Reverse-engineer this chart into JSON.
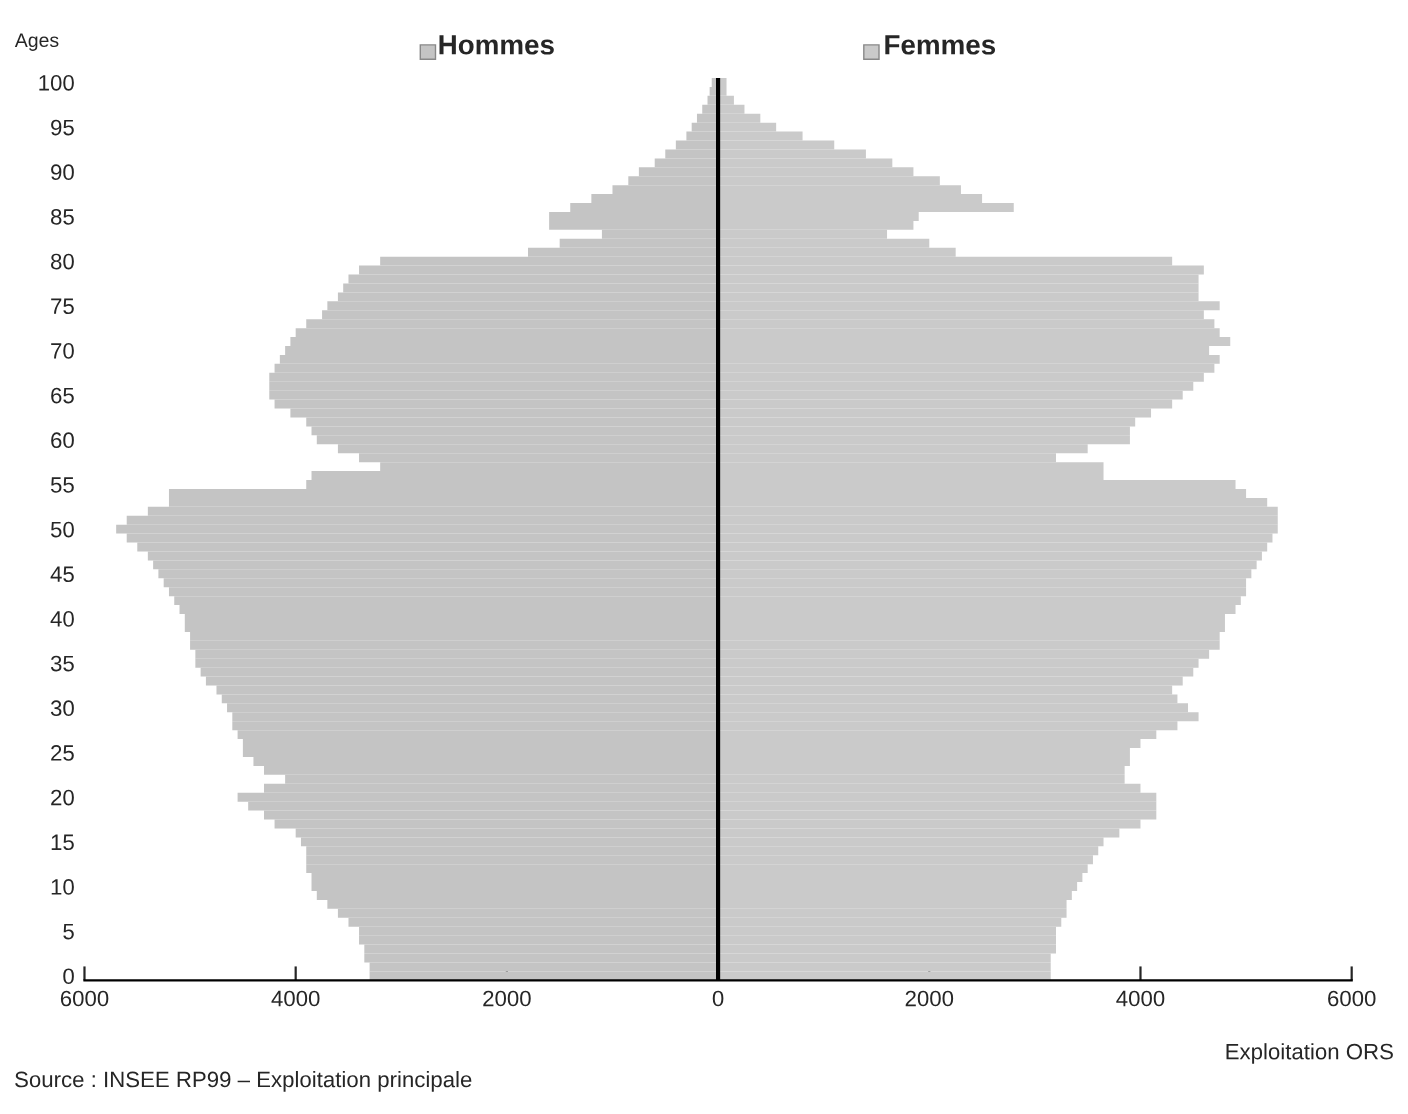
{
  "chart_data": {
    "type": "bar",
    "orientation": "horizontal",
    "ylabel": "Ages",
    "categories": [
      "100",
      null,
      null,
      null,
      null,
      "95",
      null,
      null,
      null,
      null,
      "90",
      null,
      null,
      null,
      null,
      "85",
      null,
      null,
      null,
      null,
      "80",
      null,
      null,
      null,
      null,
      "75",
      null,
      null,
      null,
      null,
      "70",
      null,
      null,
      null,
      null,
      "65",
      null,
      null,
      null,
      null,
      "60",
      null,
      null,
      null,
      null,
      "55",
      null,
      null,
      null,
      null,
      "50",
      null,
      null,
      null,
      null,
      "45",
      null,
      null,
      null,
      null,
      "40",
      null,
      null,
      null,
      null,
      "35",
      null,
      null,
      null,
      null,
      "30",
      null,
      null,
      null,
      null,
      "25",
      null,
      null,
      null,
      null,
      "20",
      null,
      null,
      null,
      null,
      "15",
      null,
      null,
      null,
      null,
      "10",
      null,
      null,
      null,
      null,
      "5",
      null,
      null,
      null,
      null,
      "0"
    ],
    "series": [
      {
        "name": "Hommes",
        "color": "#c4c4c4",
        "values": [
          -60,
          -80,
          -100,
          -150,
          -200,
          -250,
          -300,
          -400,
          -500,
          -600,
          -750,
          -850,
          -1000,
          -1200,
          -1400,
          -1600,
          -1600,
          -1100,
          -1500,
          -1800,
          -3200,
          -3400,
          -3500,
          -3550,
          -3600,
          -3700,
          -3750,
          -3900,
          -4000,
          -4050,
          -4100,
          -4150,
          -4200,
          -4250,
          -4250,
          -4250,
          -4200,
          -4050,
          -3900,
          -3850,
          -3800,
          -3600,
          -3400,
          -3200,
          -3850,
          -3900,
          -5200,
          -5200,
          -5400,
          -5600,
          -5700,
          -5600,
          -5500,
          -5400,
          -5350,
          -5300,
          -5250,
          -5200,
          -5150,
          -5100,
          -5050,
          -5050,
          -5000,
          -5000,
          -4950,
          -4950,
          -4900,
          -4850,
          -4750,
          -4700,
          -4650,
          -4600,
          -4600,
          -4550,
          -4500,
          -4500,
          -4400,
          -4300,
          -4100,
          -4300,
          -4550,
          -4450,
          -4300,
          -4200,
          -4000,
          -3950,
          -3900,
          -3900,
          -3900,
          -3850,
          -3850,
          -3800,
          -3700,
          -3600,
          -3500,
          -3400,
          -3400,
          -3350,
          -3350,
          -3300,
          -3300
        ]
      },
      {
        "name": "Femmes",
        "color": "#cacaca",
        "values": [
          80,
          80,
          150,
          250,
          400,
          550,
          800,
          1100,
          1400,
          1650,
          1850,
          2100,
          2300,
          2500,
          2800,
          1900,
          1850,
          1600,
          2000,
          2250,
          4300,
          4600,
          4550,
          4550,
          4550,
          4750,
          4600,
          4700,
          4750,
          4850,
          4650,
          4750,
          4700,
          4600,
          4500,
          4400,
          4300,
          4100,
          3950,
          3900,
          3900,
          3500,
          3200,
          3650,
          3650,
          4900,
          5000,
          5200,
          5300,
          5300,
          5300,
          5250,
          5200,
          5150,
          5100,
          5050,
          5000,
          5000,
          4950,
          4900,
          4800,
          4800,
          4750,
          4750,
          4650,
          4550,
          4500,
          4400,
          4300,
          4350,
          4450,
          4550,
          4350,
          4150,
          4000,
          3900,
          3900,
          3850,
          3850,
          4000,
          4150,
          4150,
          4150,
          4000,
          3800,
          3650,
          3600,
          3550,
          3500,
          3450,
          3400,
          3350,
          3300,
          3300,
          3250,
          3200,
          3200,
          3200,
          3150,
          3150,
          3150
        ]
      }
    ],
    "xlim": [
      -6000,
      6000
    ],
    "xticks": [
      {
        "value": -6000,
        "label": "6000"
      },
      {
        "value": -4000,
        "label": "4000"
      },
      {
        "value": -2000,
        "label": "2000"
      },
      0,
      2000,
      4000,
      6000
    ],
    "ref_lines": [
      {
        "axis": "x",
        "value": 0,
        "color": "#000000"
      }
    ],
    "annotations": [
      "Source : INSEE RP99 – Exploitation principale",
      "Exploitation ORS"
    ],
    "grid": false,
    "legend": "top",
    "stacked": true
  }
}
